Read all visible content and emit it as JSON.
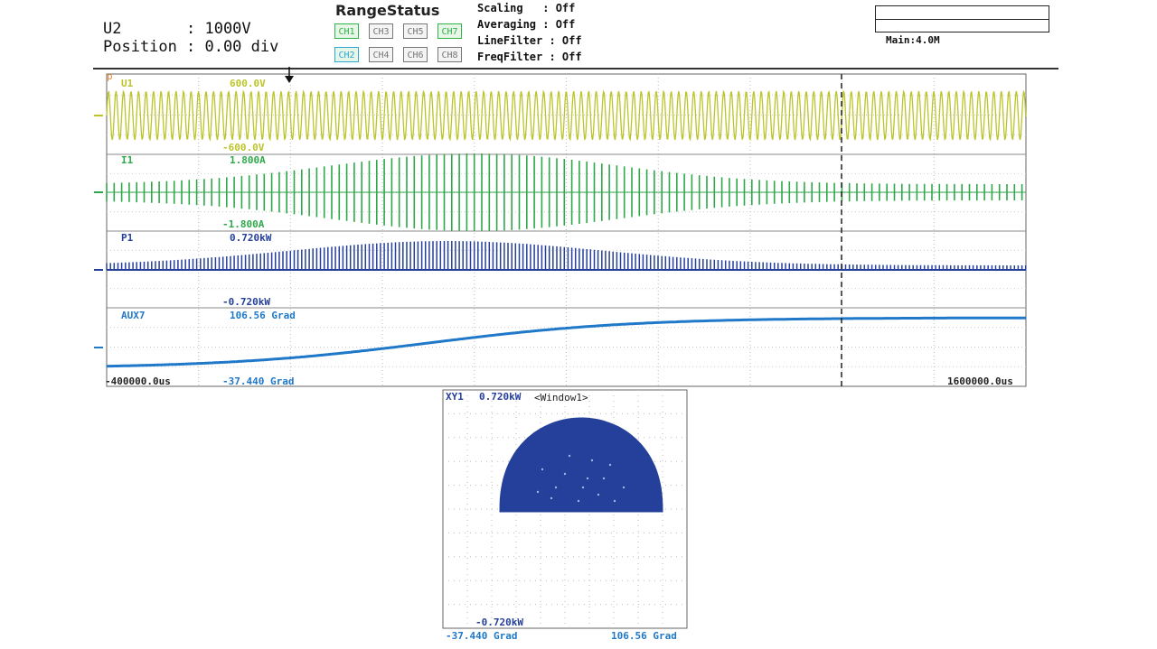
{
  "header": {
    "channel": "U2",
    "channel_value": ": 1000V",
    "position_label": "Position",
    "position_value": ": 0.00 div",
    "range_status_title": "RangeStatus",
    "channels": [
      {
        "label": "CH1",
        "state": "active",
        "color": "#2db34a"
      },
      {
        "label": "CH3",
        "state": "inactive",
        "color": "#777777"
      },
      {
        "label": "CH5",
        "state": "inactive",
        "color": "#777777"
      },
      {
        "label": "CH7",
        "state": "active",
        "color": "#2db34a"
      },
      {
        "label": "CH2",
        "state": "active",
        "color": "#2ba6d8"
      },
      {
        "label": "CH4",
        "state": "inactive",
        "color": "#777777"
      },
      {
        "label": "CH6",
        "state": "inactive",
        "color": "#777777"
      },
      {
        "label": "CH8",
        "state": "inactive",
        "color": "#777777"
      }
    ],
    "status_lines": [
      "Scaling   : Off",
      "Averaging : Off",
      "LineFilter : Off",
      "FreqFilter : Off"
    ],
    "main_label": "Main:4.0M"
  },
  "waveform": {
    "traces": [
      {
        "name": "U1",
        "max_label": "600.0V",
        "min_label": "-600.0V",
        "color": "#bcc42a"
      },
      {
        "name": "I1",
        "max_label": "1.800A",
        "min_label": "-1.800A",
        "color": "#2ea84a"
      },
      {
        "name": "P1",
        "max_label": "0.720kW",
        "min_label": "-0.720kW",
        "color": "#25409a"
      },
      {
        "name": "AUX7",
        "max_label": "106.56 Grad",
        "min_label": "-37.440 Grad",
        "color": "#1f78c8"
      }
    ],
    "x_start": "-400000.0us",
    "x_end": "1600000.0us"
  },
  "xy": {
    "title": "XY1",
    "y_max_label": "0.720kW",
    "window_label": "<Window1>",
    "y_min_label": "-0.720kW",
    "x_min_label": "-37.440 Grad",
    "x_max_label": "106.56 Grad",
    "color": "#25409a"
  }
}
